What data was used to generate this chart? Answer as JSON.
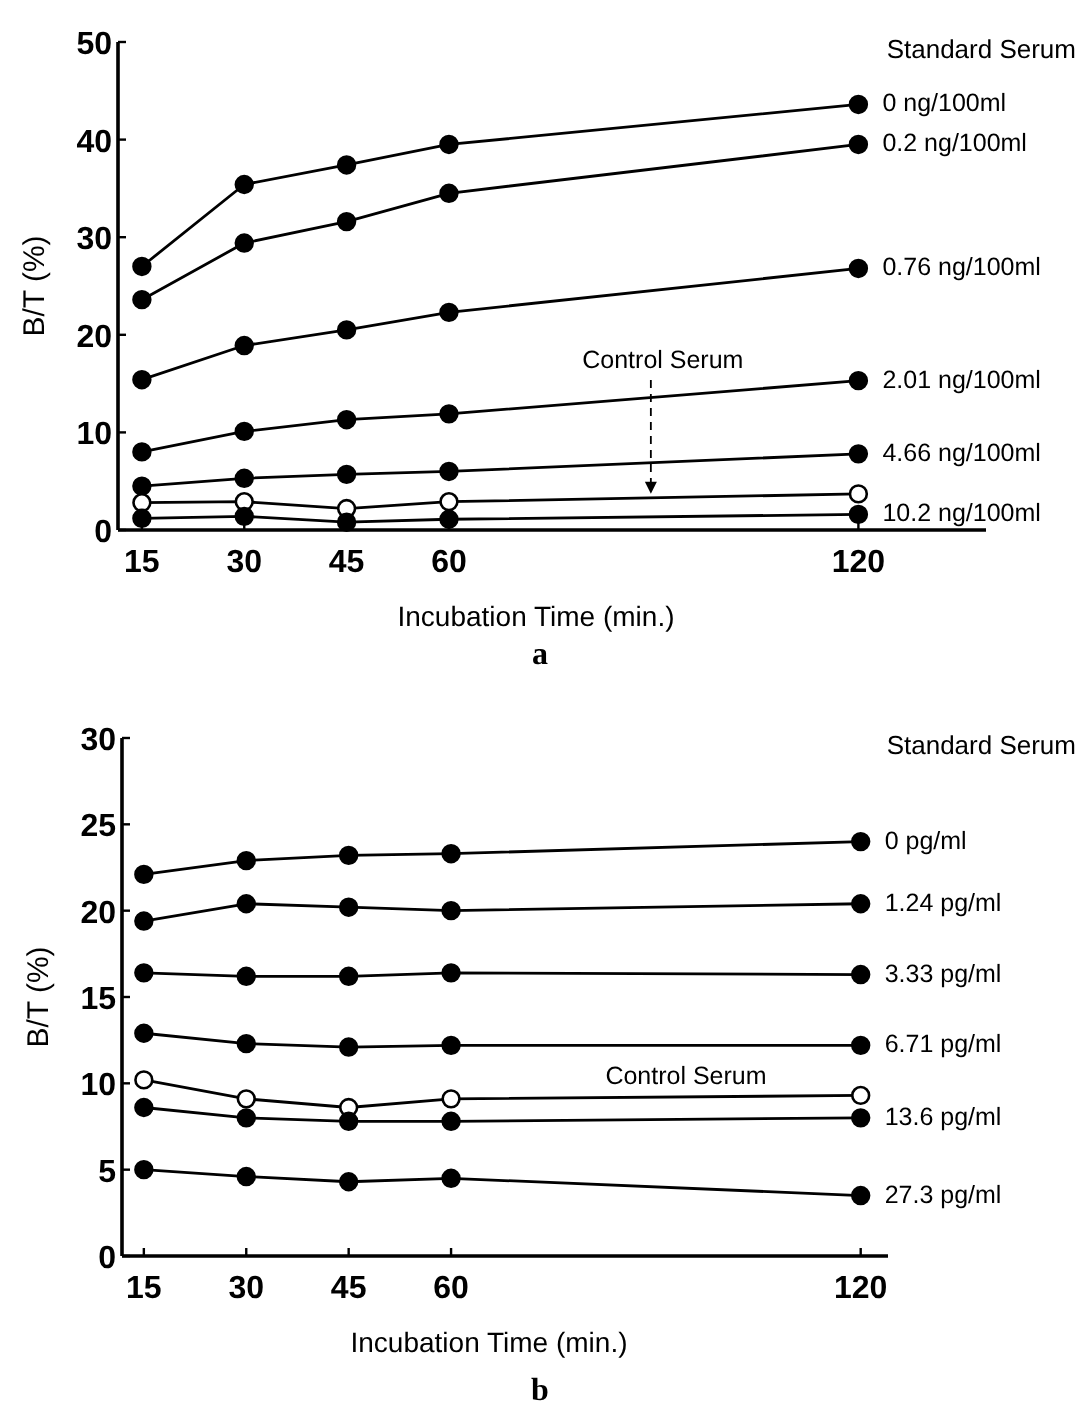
{
  "chart_data": [
    {
      "type": "line",
      "title": "a",
      "xlabel": "Incubation Time (min.)",
      "ylabel": "B/T (%)",
      "legend_title": "Standard Serum",
      "x": [
        15,
        30,
        45,
        60,
        120
      ],
      "xlim": [
        11.5,
        138.7
      ],
      "xticks": [
        15,
        30,
        45,
        60,
        120
      ],
      "ylim": [
        0,
        50
      ],
      "yticks": [
        0,
        10,
        20,
        30,
        40,
        50
      ],
      "grid": false,
      "line_style": "solid",
      "annotations": [
        {
          "text": "Control Serum",
          "x": 89,
          "y": 3.3
        }
      ],
      "series": [
        {
          "name": "0 ng/100ml",
          "color": "#000000",
          "marker": "circle",
          "values": [
            27.0,
            35.4,
            37.4,
            39.5,
            43.6
          ]
        },
        {
          "name": "0.2 ng/100ml",
          "color": "#000000",
          "marker": "circle",
          "values": [
            23.6,
            29.4,
            31.6,
            34.5,
            39.5
          ]
        },
        {
          "name": "0.76 ng/100ml",
          "color": "#000000",
          "marker": "circle",
          "values": [
            15.4,
            18.9,
            20.5,
            22.3,
            26.8
          ]
        },
        {
          "name": "2.01 ng/100ml",
          "color": "#000000",
          "marker": "circle",
          "values": [
            8.0,
            10.1,
            11.3,
            11.9,
            15.3
          ]
        },
        {
          "name": "4.66 ng/100ml",
          "color": "#000000",
          "marker": "circle",
          "values": [
            4.5,
            5.3,
            5.7,
            6.0,
            7.8
          ]
        },
        {
          "color": "#000000",
          "marker": "open circle",
          "values": [
            2.8,
            2.9,
            2.2,
            2.9,
            3.7
          ]
        },
        {
          "name": "10.2 ng/100ml",
          "color": "#000000",
          "marker": "circle",
          "values": [
            1.2,
            1.4,
            0.8,
            1.1,
            1.6
          ]
        }
      ]
    },
    {
      "type": "line",
      "title": "b",
      "xlabel": "Incubation Time (min.)",
      "ylabel": "B/T (%)",
      "legend_title": "Standard Serum",
      "x": [
        15,
        30,
        45,
        60,
        120
      ],
      "xlim": [
        11.8,
        124
      ],
      "xticks": [
        15,
        30,
        45,
        60,
        120
      ],
      "ylim": [
        0,
        30
      ],
      "yticks": [
        0,
        5,
        10,
        15,
        20,
        25,
        30
      ],
      "grid": false,
      "line_style": "solid",
      "annotations": [
        "Control Serum"
      ],
      "series": [
        {
          "name": "0 pg/ml",
          "color": "#000000",
          "marker": "circle",
          "values": [
            22.1,
            22.9,
            23.2,
            23.3,
            24.0
          ]
        },
        {
          "name": "1.24 pg/ml",
          "color": "#000000",
          "marker": "circle",
          "values": [
            19.4,
            20.4,
            20.2,
            20.0,
            20.4
          ]
        },
        {
          "name": "3.33 pg/ml",
          "color": "#000000",
          "marker": "circle",
          "values": [
            16.4,
            16.2,
            16.2,
            16.4,
            16.3
          ]
        },
        {
          "name": "6.71 pg/ml",
          "color": "#000000",
          "marker": "circle",
          "values": [
            12.9,
            12.3,
            12.1,
            12.2,
            12.2
          ]
        },
        {
          "color": "#000000",
          "marker": "open circle",
          "values": [
            10.2,
            9.1,
            8.6,
            9.1,
            9.3
          ]
        },
        {
          "name": "13.6 pg/ml",
          "color": "#000000",
          "marker": "circle",
          "values": [
            8.6,
            8.0,
            7.8,
            7.8,
            8.0
          ]
        },
        {
          "name": "27.3 pg/ml",
          "color": "#000000",
          "marker": "circle",
          "values": [
            5.0,
            4.6,
            4.3,
            4.5,
            3.5
          ]
        }
      ]
    }
  ]
}
